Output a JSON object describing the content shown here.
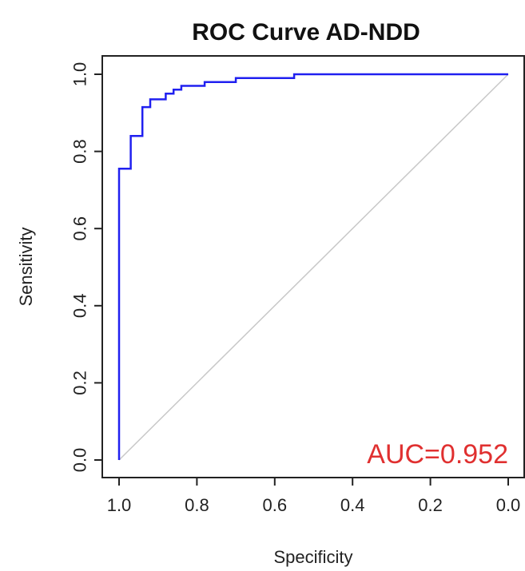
{
  "chart_data": {
    "type": "line",
    "title": "ROC Curve AD-NDD",
    "xlabel": "Specificity",
    "ylabel": "Sensitivity",
    "x_reversed": true,
    "xlim": [
      1.0,
      0.0
    ],
    "ylim": [
      0.0,
      1.0
    ],
    "x_ticks": [
      "1.0",
      "0.8",
      "0.6",
      "0.4",
      "0.2",
      "0.0"
    ],
    "y_ticks": [
      "0.0",
      "0.2",
      "0.4",
      "0.6",
      "0.8",
      "1.0"
    ],
    "grid": false,
    "series": [
      {
        "color": "#2020f0",
        "x": [
          1.0,
          1.0,
          0.97,
          0.97,
          0.94,
          0.94,
          0.92,
          0.92,
          0.88,
          0.88,
          0.86,
          0.86,
          0.84,
          0.84,
          0.78,
          0.78,
          0.7,
          0.7,
          0.55,
          0.55,
          0.0
        ],
        "y": [
          0.0,
          0.755,
          0.755,
          0.84,
          0.84,
          0.915,
          0.915,
          0.935,
          0.935,
          0.95,
          0.95,
          0.96,
          0.96,
          0.97,
          0.97,
          0.98,
          0.98,
          0.99,
          0.99,
          1.0,
          1.0
        ]
      }
    ],
    "reference_line": {
      "color": "#c8c8c8",
      "x": [
        1.0,
        0.0
      ],
      "y": [
        0.0,
        1.0
      ]
    },
    "annotations": [
      {
        "text": "AUC=0.952",
        "color": "#e03030",
        "placement": "bottom-right"
      }
    ]
  }
}
